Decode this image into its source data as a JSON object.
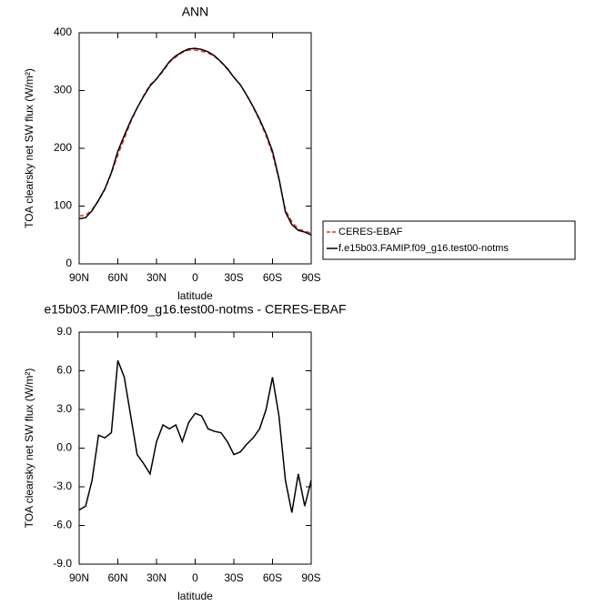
{
  "chart_data": [
    {
      "type": "line",
      "title": "ANN",
      "xlabel": "latitude",
      "ylabel": "TOA clearsky net SW flux (W/m²)",
      "x": [
        90,
        85,
        80,
        75,
        70,
        65,
        60,
        55,
        50,
        45,
        40,
        35,
        30,
        25,
        20,
        15,
        10,
        5,
        0,
        -5,
        -10,
        -15,
        -20,
        -25,
        -30,
        -35,
        -40,
        -45,
        -50,
        -55,
        -60,
        -65,
        -70,
        -75,
        -80,
        -85,
        -90
      ],
      "series": [
        {
          "name": "CERES-EBAF",
          "color": "#e0302a",
          "style": "dashed",
          "values": [
            83,
            84,
            94,
            109,
            129,
            157,
            188,
            217,
            246,
            270,
            291,
            310,
            320,
            333,
            349,
            358,
            366,
            370,
            370,
            368,
            365,
            359,
            349,
            337,
            323,
            310,
            292,
            271,
            248,
            222,
            190,
            146,
            93,
            73,
            60,
            57,
            53
          ]
        },
        {
          "name": "f.e15b03.FAMIP.f09_g16.test00-notms",
          "color": "#000000",
          "style": "solid",
          "values": [
            78,
            80,
            92,
            110,
            130,
            158,
            195,
            222,
            248,
            270,
            290,
            308,
            320,
            335,
            350,
            360,
            367,
            372,
            373,
            371,
            367,
            360,
            350,
            338,
            323,
            310,
            292,
            272,
            250,
            225,
            195,
            148,
            90,
            68,
            58,
            55,
            50
          ]
        }
      ],
      "xlim": [
        90,
        -90
      ],
      "xticks": [
        {
          "value": 90,
          "label": "90N"
        },
        {
          "value": 60,
          "label": "60N"
        },
        {
          "value": 30,
          "label": "30N"
        },
        0,
        {
          "value": -30,
          "label": "30S"
        },
        {
          "value": -60,
          "label": "60S"
        },
        {
          "value": -90,
          "label": "90S"
        }
      ],
      "ylim": [
        0,
        400
      ],
      "yticks": [
        0,
        100,
        200,
        300,
        400
      ],
      "legend": "right"
    },
    {
      "type": "line",
      "title": "e15b03.FAMIP.f09_g16.test00-notms - CERES-EBAF",
      "xlabel": "latitude",
      "ylabel": "TOA clearsky net SW flux (W/m²)",
      "x": [
        90,
        85,
        80,
        75,
        70,
        65,
        60,
        55,
        50,
        45,
        40,
        35,
        30,
        25,
        20,
        15,
        10,
        5,
        0,
        -5,
        -10,
        -15,
        -20,
        -25,
        -30,
        -35,
        -40,
        -45,
        -50,
        -55,
        -60,
        -65,
        -70,
        -75,
        -80,
        -85,
        -90
      ],
      "series": [
        {
          "color": "#000000",
          "style": "solid",
          "values": [
            -4.8,
            -4.5,
            -2.5,
            1.0,
            0.8,
            1.2,
            6.8,
            5.5,
            2.5,
            -0.5,
            -1.2,
            -2.0,
            0.5,
            1.8,
            1.5,
            1.8,
            0.5,
            2.0,
            2.7,
            2.5,
            1.5,
            1.3,
            1.2,
            0.5,
            -0.5,
            -0.3,
            0.3,
            0.8,
            1.5,
            3.0,
            5.5,
            2.5,
            -2.5,
            -5.0,
            -2.0,
            -4.5,
            -2.5
          ]
        }
      ],
      "xlim": [
        90,
        -90
      ],
      "xticks": [
        {
          "value": 90,
          "label": "90N"
        },
        {
          "value": 60,
          "label": "60N"
        },
        {
          "value": 30,
          "label": "30N"
        },
        0,
        {
          "value": -30,
          "label": "30S"
        },
        {
          "value": -60,
          "label": "60S"
        },
        {
          "value": -90,
          "label": "90S"
        }
      ],
      "ylim": [
        -9,
        9
      ],
      "yticks": [
        {
          "value": -9,
          "label": "-9.0"
        },
        {
          "value": -6,
          "label": "-6.0"
        },
        {
          "value": -3,
          "label": "-3.0"
        },
        {
          "value": 0,
          "label": "0.0"
        },
        {
          "value": 3,
          "label": "3.0"
        },
        {
          "value": 6,
          "label": "6.0"
        },
        {
          "value": 9,
          "label": "9.0"
        }
      ]
    }
  ]
}
